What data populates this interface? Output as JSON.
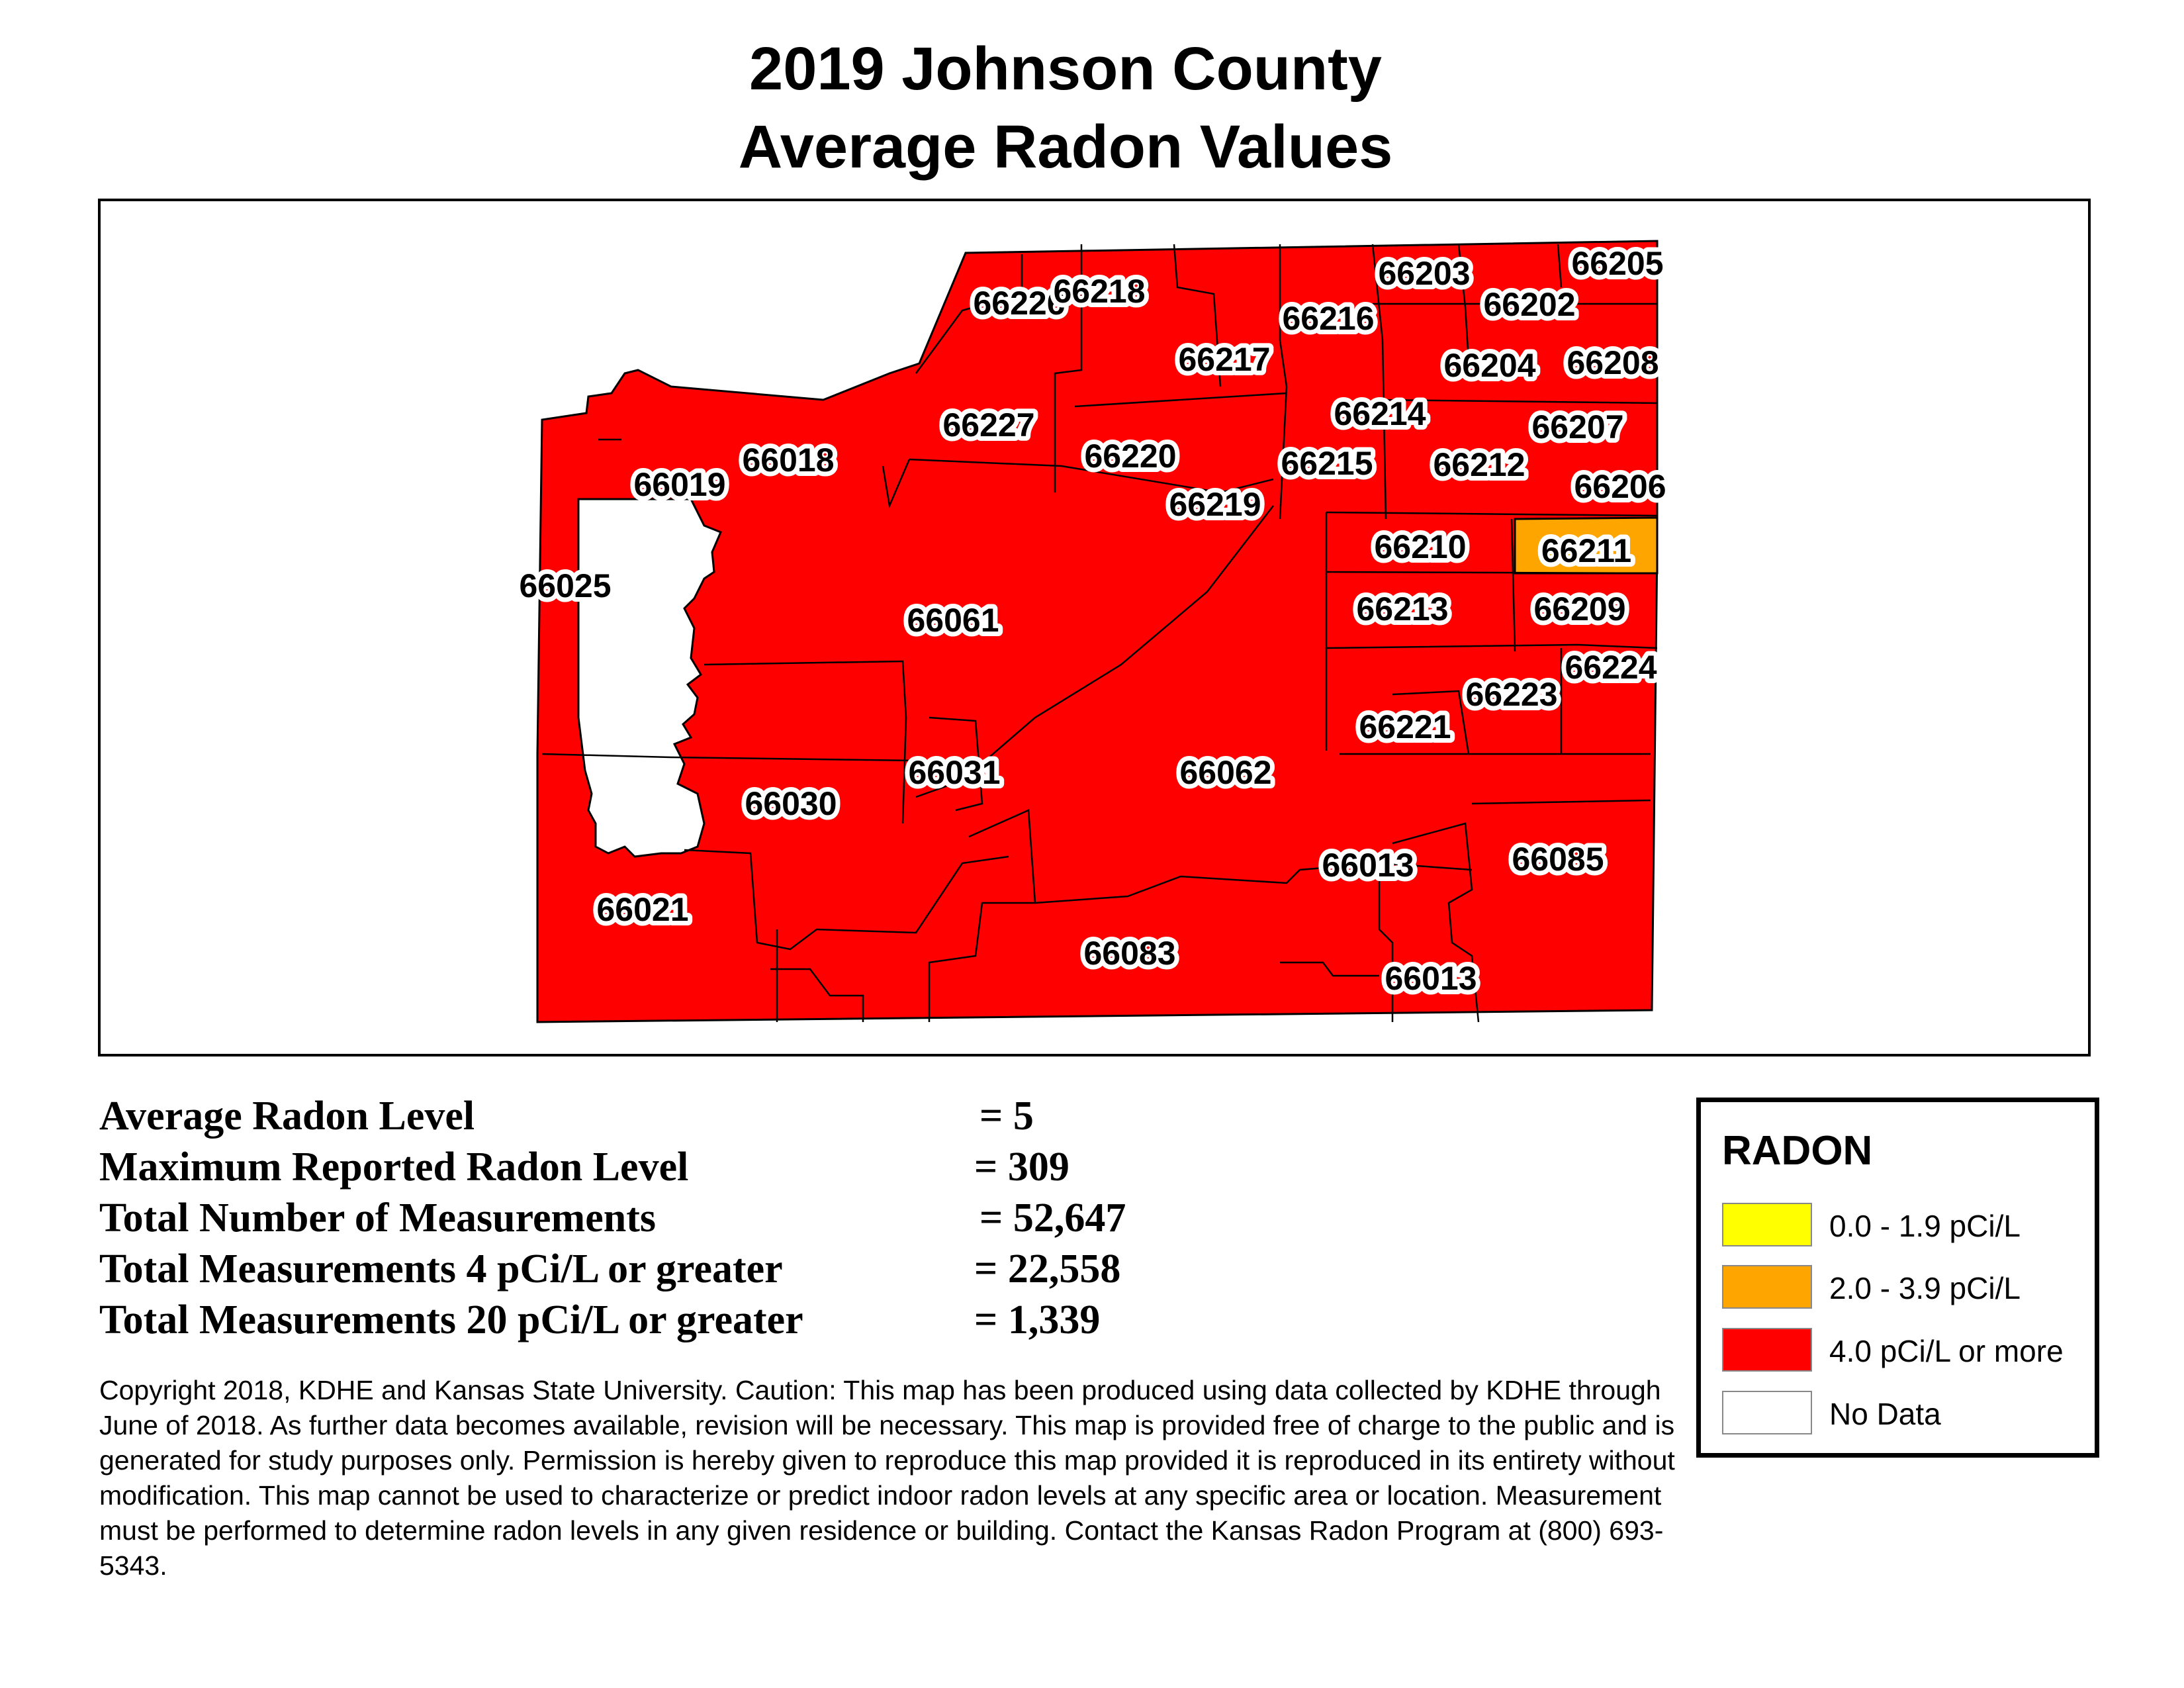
{
  "title_line1": "2019 Johnson County",
  "title_line2": "Average Radon Values",
  "colors": {
    "red": "#ff0000",
    "orange": "#ffa500",
    "yellow": "#ffff00",
    "nodata": "#ffffff",
    "boundary": "#000000"
  },
  "zip_codes": [
    "66226",
    "66218",
    "66203",
    "66205",
    "66202",
    "66216",
    "66217",
    "66204",
    "66208",
    "66227",
    "66214",
    "66207",
    "66018",
    "66220",
    "66215",
    "66212",
    "66019",
    "66219",
    "66206",
    "66210",
    "66211",
    "66025",
    "66061",
    "66213",
    "66209",
    "66224",
    "66223",
    "66221",
    "66031",
    "66062",
    "66030",
    "66013",
    "66085",
    "66021",
    "66083",
    "66013"
  ],
  "stats": [
    {
      "label": "Average Radon Level",
      "value": "= 5"
    },
    {
      "label": "Maximum Reported Radon Level",
      "value": "= 309"
    },
    {
      "label": "Total Number of Measurements",
      "value": "= 52,647"
    },
    {
      "label": "Total Measurements 4 pCi/L or greater",
      "value": "= 22,558"
    },
    {
      "label": "Total Measurements 20 pCi/L or greater",
      "value": "= 1,339"
    }
  ],
  "copyright": "Copyright 2018, KDHE and Kansas State University.  Caution: This map has been produced using data collected by KDHE through June of 2018.  As further data becomes available, revision will be necessary. This map is provided free of charge to the public and is generated for study purposes only.  Permission is hereby given to reproduce this map provided it is reproduced in its entirety without modification. This map cannot be used to characterize or predict indoor radon levels at any specific area or location. Measurement must be performed to determine radon levels in any given residence or building. Contact the Kansas Radon Program at (800) 693-5343.",
  "legend": {
    "title": "RADON",
    "items": [
      {
        "label": "0.0 - 1.9 pCi/L",
        "color": "#ffff00"
      },
      {
        "label": "2.0 - 3.9 pCi/L",
        "color": "#ffa500"
      },
      {
        "label": "4.0 pCi/L or more",
        "color": "#ff0000"
      },
      {
        "label": "No Data",
        "color": "#ffffff"
      }
    ]
  }
}
